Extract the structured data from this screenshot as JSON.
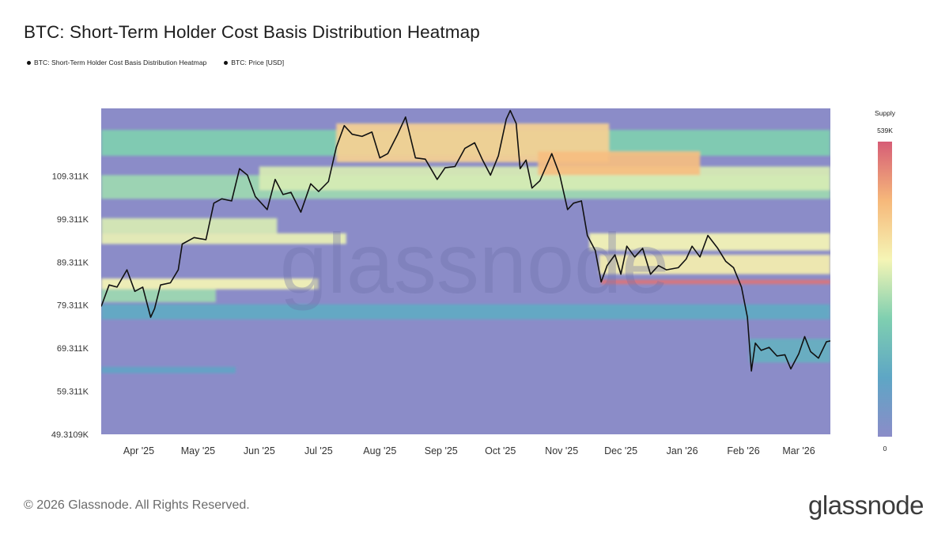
{
  "title": "BTC: Short-Term Holder Cost Basis Distribution Heatmap",
  "legend": [
    {
      "label": "BTC: Short-Term Holder Cost Basis Distribution Heatmap",
      "color": "#111111"
    },
    {
      "label": "BTC: Price [USD]",
      "color": "#111111"
    }
  ],
  "watermark": "glassnode",
  "footer": {
    "copyright": "© 2026 Glassnode. All Rights Reserved.",
    "brand": "glassnode"
  },
  "colors": {
    "background": "#8b8cc8",
    "price_line": "#111111",
    "colorbar": [
      "#8b8cc8",
      "#5ea6c5",
      "#7fcfb0",
      "#f5f5b5",
      "#f6b87a",
      "#d65d76"
    ]
  },
  "chart_data": {
    "type": "heatmap",
    "title": "BTC: Short-Term Holder Cost Basis Distribution Heatmap",
    "ylim": [
      49310.9,
      125000
    ],
    "y_ticks": [
      {
        "label": "109.311K",
        "value": 109311
      },
      {
        "label": "99.311K",
        "value": 99311
      },
      {
        "label": "89.311K",
        "value": 89311
      },
      {
        "label": "79.311K",
        "value": 79311
      },
      {
        "label": "69.311K",
        "value": 69311
      },
      {
        "label": "59.311K",
        "value": 59311
      },
      {
        "label": "49.3109K",
        "value": 49310.9
      }
    ],
    "x_range": [
      "2025-03-13",
      "2026-03-17"
    ],
    "x_ticks": [
      {
        "label": "Apr '25",
        "date": "2025-04-01"
      },
      {
        "label": "May '25",
        "date": "2025-05-01"
      },
      {
        "label": "Jun '25",
        "date": "2025-06-01"
      },
      {
        "label": "Jul '25",
        "date": "2025-07-01"
      },
      {
        "label": "Aug '25",
        "date": "2025-08-01"
      },
      {
        "label": "Sep '25",
        "date": "2025-09-01"
      },
      {
        "label": "Oct '25",
        "date": "2025-10-01"
      },
      {
        "label": "Nov '25",
        "date": "2025-11-01"
      },
      {
        "label": "Dec '25",
        "date": "2025-12-01"
      },
      {
        "label": "Jan '26",
        "date": "2026-01-01"
      },
      {
        "label": "Feb '26",
        "date": "2026-02-01"
      },
      {
        "label": "Mar '26",
        "date": "2026-03-01"
      }
    ],
    "colorbar": {
      "title": "Supply",
      "max_label": "539K",
      "min_label": "0",
      "max": 539000,
      "min": 0
    },
    "price_series": {
      "name": "BTC: Price [USD]",
      "points": [
        [
          "2025-03-13",
          79000
        ],
        [
          "2025-03-17",
          84000
        ],
        [
          "2025-03-21",
          83500
        ],
        [
          "2025-03-26",
          87500
        ],
        [
          "2025-03-30",
          82500
        ],
        [
          "2025-04-03",
          83500
        ],
        [
          "2025-04-07",
          76500
        ],
        [
          "2025-04-09",
          78500
        ],
        [
          "2025-04-12",
          84000
        ],
        [
          "2025-04-17",
          84500
        ],
        [
          "2025-04-21",
          87500
        ],
        [
          "2025-04-23",
          93500
        ],
        [
          "2025-04-29",
          95000
        ],
        [
          "2025-05-05",
          94500
        ],
        [
          "2025-05-09",
          103000
        ],
        [
          "2025-05-13",
          104000
        ],
        [
          "2025-05-18",
          103500
        ],
        [
          "2025-05-22",
          111000
        ],
        [
          "2025-05-26",
          109500
        ],
        [
          "2025-05-30",
          104500
        ],
        [
          "2025-06-05",
          101500
        ],
        [
          "2025-06-09",
          108500
        ],
        [
          "2025-06-13",
          105000
        ],
        [
          "2025-06-17",
          105500
        ],
        [
          "2025-06-22",
          100900
        ],
        [
          "2025-06-27",
          107500
        ],
        [
          "2025-07-01",
          105700
        ],
        [
          "2025-07-06",
          108000
        ],
        [
          "2025-07-10",
          116000
        ],
        [
          "2025-07-14",
          121000
        ],
        [
          "2025-07-18",
          119000
        ],
        [
          "2025-07-23",
          118500
        ],
        [
          "2025-07-28",
          119500
        ],
        [
          "2025-08-01",
          113500
        ],
        [
          "2025-08-05",
          114500
        ],
        [
          "2025-08-10",
          119000
        ],
        [
          "2025-08-14",
          123000
        ],
        [
          "2025-08-19",
          113500
        ],
        [
          "2025-08-24",
          113200
        ],
        [
          "2025-08-30",
          108500
        ],
        [
          "2025-09-03",
          111200
        ],
        [
          "2025-09-08",
          111500
        ],
        [
          "2025-09-13",
          115700
        ],
        [
          "2025-09-18",
          117000
        ],
        [
          "2025-09-22",
          113000
        ],
        [
          "2025-09-26",
          109500
        ],
        [
          "2025-09-30",
          114000
        ],
        [
          "2025-10-04",
          122500
        ],
        [
          "2025-10-06",
          124500
        ],
        [
          "2025-10-09",
          121500
        ],
        [
          "2025-10-11",
          111000
        ],
        [
          "2025-10-14",
          113000
        ],
        [
          "2025-10-17",
          106500
        ],
        [
          "2025-10-21",
          108200
        ],
        [
          "2025-10-27",
          114500
        ],
        [
          "2025-10-31",
          109600
        ],
        [
          "2025-11-04",
          101500
        ],
        [
          "2025-11-07",
          103000
        ],
        [
          "2025-11-11",
          103500
        ],
        [
          "2025-11-14",
          95500
        ],
        [
          "2025-11-18",
          92000
        ],
        [
          "2025-11-21",
          84700
        ],
        [
          "2025-11-24",
          88500
        ],
        [
          "2025-11-28",
          91000
        ],
        [
          "2025-12-01",
          86500
        ],
        [
          "2025-12-04",
          93000
        ],
        [
          "2025-12-08",
          90500
        ],
        [
          "2025-12-12",
          92500
        ],
        [
          "2025-12-16",
          86500
        ],
        [
          "2025-12-20",
          88500
        ],
        [
          "2025-12-24",
          87500
        ],
        [
          "2025-12-30",
          88000
        ],
        [
          "2026-01-03",
          90000
        ],
        [
          "2026-01-06",
          93000
        ],
        [
          "2026-01-10",
          90500
        ],
        [
          "2026-01-14",
          95500
        ],
        [
          "2026-01-19",
          92500
        ],
        [
          "2026-01-23",
          89500
        ],
        [
          "2026-01-27",
          88000
        ],
        [
          "2026-01-31",
          83500
        ],
        [
          "2026-02-03",
          76500
        ],
        [
          "2026-02-05",
          64000
        ],
        [
          "2026-02-07",
          70500
        ],
        [
          "2026-02-10",
          68800
        ],
        [
          "2026-02-14",
          69500
        ],
        [
          "2026-02-18",
          67500
        ],
        [
          "2026-02-22",
          67800
        ],
        [
          "2026-02-25",
          64500
        ],
        [
          "2026-03-01",
          68000
        ],
        [
          "2026-03-04",
          72000
        ],
        [
          "2026-03-07",
          68500
        ],
        [
          "2026-03-11",
          67000
        ],
        [
          "2026-03-15",
          70800
        ],
        [
          "2026-03-17",
          71000
        ]
      ]
    },
    "cost_basis_bands": [
      {
        "from": "2025-03-13",
        "to": "2026-03-17",
        "low": 114000,
        "high": 120000,
        "intensity": 0.4
      },
      {
        "from": "2025-03-13",
        "to": "2026-03-17",
        "low": 104000,
        "high": 109500,
        "intensity": 0.45
      },
      {
        "from": "2025-06-01",
        "to": "2026-03-17",
        "low": 106000,
        "high": 111500,
        "intensity": 0.55
      },
      {
        "from": "2025-03-13",
        "to": "2025-06-10",
        "low": 96000,
        "high": 99500,
        "intensity": 0.55
      },
      {
        "from": "2025-03-13",
        "to": "2025-07-15",
        "low": 93500,
        "high": 96000,
        "intensity": 0.58
      },
      {
        "from": "2025-07-10",
        "to": "2025-11-25",
        "low": 112500,
        "high": 121500,
        "intensity": 0.72
      },
      {
        "from": "2025-10-20",
        "to": "2026-01-10",
        "low": 109500,
        "high": 115000,
        "intensity": 0.78
      },
      {
        "from": "2025-11-15",
        "to": "2026-03-17",
        "low": 92000,
        "high": 96000,
        "intensity": 0.6
      },
      {
        "from": "2025-11-20",
        "to": "2026-03-17",
        "low": 86500,
        "high": 91000,
        "intensity": 0.62
      },
      {
        "from": "2025-11-21",
        "to": "2026-03-17",
        "low": 84200,
        "high": 85200,
        "intensity": 0.95
      },
      {
        "from": "2025-03-13",
        "to": "2025-07-01",
        "low": 83000,
        "high": 85500,
        "intensity": 0.6
      },
      {
        "from": "2025-03-13",
        "to": "2025-05-10",
        "low": 80000,
        "high": 83000,
        "intensity": 0.45
      },
      {
        "from": "2025-03-13",
        "to": "2026-03-17",
        "low": 76000,
        "high": 79500,
        "intensity": 0.22
      },
      {
        "from": "2026-02-04",
        "to": "2026-03-17",
        "low": 66000,
        "high": 71500,
        "intensity": 0.25
      },
      {
        "from": "2025-03-13",
        "to": "2025-05-20",
        "low": 63500,
        "high": 65000,
        "intensity": 0.18
      }
    ]
  }
}
